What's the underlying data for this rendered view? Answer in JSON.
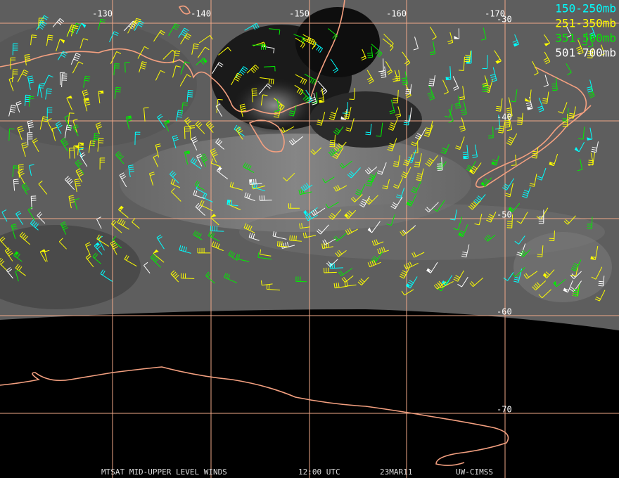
{
  "map": {
    "longitude_labels": [
      "-130",
      "-140",
      "-150",
      "-160",
      "-170"
    ],
    "latitude_labels": [
      "-30",
      "-40",
      "-50",
      "-60",
      "-70"
    ],
    "legend": [
      {
        "label": "150-250mb",
        "color": "#00ffff"
      },
      {
        "label": "251-350mb",
        "color": "#ffff00"
      },
      {
        "label": "351-500mb",
        "color": "#00ee00"
      },
      {
        "label": "501-700mb",
        "color": "#ffffff"
      }
    ],
    "footer": [
      "MTSAT MID-UPPER LEVEL WINDS",
      "12:00 UTC",
      "23MAR11",
      "UW-CIMSS"
    ]
  }
}
